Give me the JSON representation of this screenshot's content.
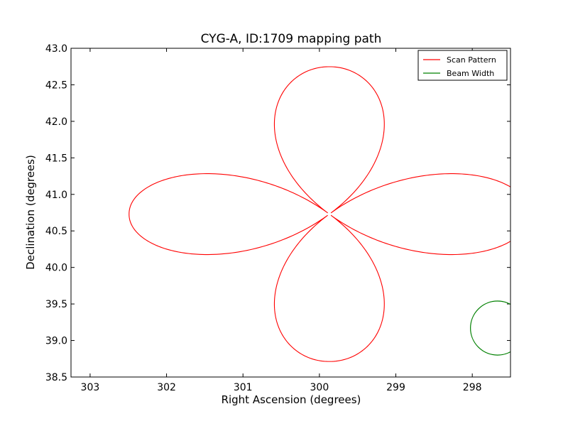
{
  "chart_data": {
    "type": "line",
    "title": "CYG-A, ID:1709 mapping path",
    "xlabel": "Right Ascension (degrees)",
    "ylabel": "Declination (degrees)",
    "xlim": [
      303.25,
      297.5
    ],
    "ylim": [
      38.5,
      43.0
    ],
    "x_ticks": [
      "303",
      "302",
      "301",
      "300",
      "299",
      "298"
    ],
    "y_ticks": [
      "38.5",
      "39.0",
      "39.5",
      "40.0",
      "40.5",
      "41.0",
      "41.5",
      "42.0",
      "42.5",
      "43.0"
    ],
    "grid": false,
    "legend_position": "top-right",
    "center": [
      299.87,
      40.73
    ],
    "series": [
      {
        "name": "Scan Pattern",
        "color": "#ff0000",
        "kind": "rose-curve",
        "petals": 4,
        "amplitude": 2.62,
        "start_end": [
          300.15,
          42.75
        ]
      },
      {
        "name": "Beam Width",
        "color": "#008000",
        "kind": "circle",
        "center": [
          297.67,
          39.17
        ],
        "radius": 0.37
      }
    ]
  }
}
